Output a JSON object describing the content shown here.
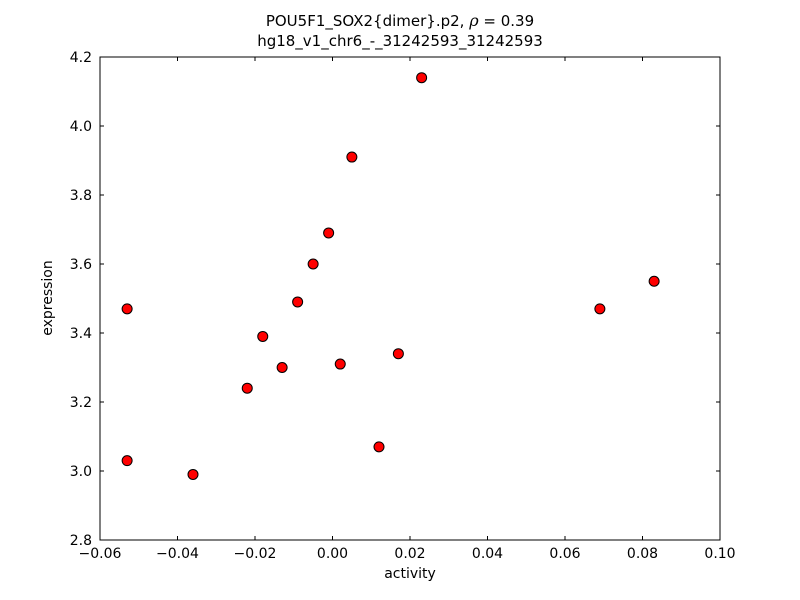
{
  "figure": {
    "title_prefix": "POU5F1_SOX2{dimer}.p2, ",
    "title_rho": "ρ",
    "title_rho_value": " = 0.39",
    "subtitle": "hg18_v1_chr6_-_31242593_31242593",
    "xlabel": "activity",
    "ylabel": "expression"
  },
  "chart_data": {
    "type": "scatter",
    "title": "POU5F1_SOX2{dimer}.p2, ρ = 0.39",
    "subtitle": "hg18_v1_chr6_-_31242593_31242593",
    "xlabel": "activity",
    "ylabel": "expression",
    "xlim": [
      -0.06,
      0.1
    ],
    "ylim": [
      2.8,
      4.2
    ],
    "grid": false,
    "legend": "none",
    "x_ticks": {
      "values": [
        -0.06,
        -0.04,
        -0.02,
        0.0,
        0.02,
        0.04,
        0.06,
        0.08,
        0.1
      ],
      "labels": [
        "−0.06",
        "−0.04",
        "−0.02",
        "0.00",
        "0.02",
        "0.04",
        "0.06",
        "0.08",
        "0.10"
      ]
    },
    "y_ticks": {
      "values": [
        2.8,
        3.0,
        3.2,
        3.4,
        3.6,
        3.8,
        4.0,
        4.2
      ],
      "labels": [
        "2.8",
        "3.0",
        "3.2",
        "3.4",
        "3.6",
        "3.8",
        "4.0",
        "4.2"
      ]
    },
    "marker": {
      "shape": "circle",
      "fill_color": "#ff0000",
      "edge_color": "#000000",
      "radius": 5
    },
    "points": [
      {
        "x": -0.053,
        "y": 3.47
      },
      {
        "x": -0.053,
        "y": 3.03
      },
      {
        "x": -0.036,
        "y": 2.99
      },
      {
        "x": -0.022,
        "y": 3.24
      },
      {
        "x": -0.018,
        "y": 3.39
      },
      {
        "x": -0.013,
        "y": 3.3
      },
      {
        "x": -0.009,
        "y": 3.49
      },
      {
        "x": -0.005,
        "y": 3.6
      },
      {
        "x": -0.001,
        "y": 3.69
      },
      {
        "x": 0.002,
        "y": 3.31
      },
      {
        "x": 0.005,
        "y": 3.91
      },
      {
        "x": 0.012,
        "y": 3.07
      },
      {
        "x": 0.017,
        "y": 3.34
      },
      {
        "x": 0.023,
        "y": 4.14
      },
      {
        "x": 0.069,
        "y": 3.47
      },
      {
        "x": 0.083,
        "y": 3.55
      }
    ]
  }
}
